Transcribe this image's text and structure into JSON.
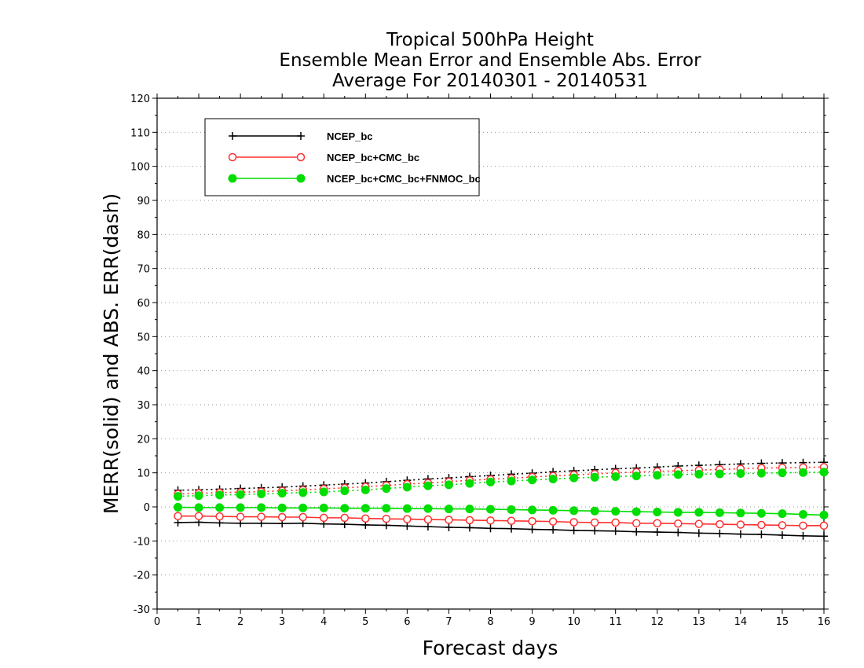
{
  "chart_data": {
    "type": "line",
    "title_lines": [
      "Tropical 500hPa Height",
      "Ensemble Mean Error and Ensemble Abs. Error",
      "Average For 20140301 - 20140531"
    ],
    "xlabel": "Forecast days",
    "ylabel": "MERR(solid) and ABS. ERR(dash)",
    "xlim": [
      0,
      16
    ],
    "ylim": [
      -30,
      120
    ],
    "x_ticks": [
      0,
      1,
      2,
      3,
      4,
      5,
      6,
      7,
      8,
      9,
      10,
      11,
      12,
      13,
      14,
      15,
      16
    ],
    "y_ticks": [
      -30,
      -20,
      -10,
      0,
      10,
      20,
      30,
      40,
      50,
      60,
      70,
      80,
      90,
      100,
      110,
      120
    ],
    "grid": "dotted horizontal",
    "legend_position": "top-left",
    "x": [
      0.5,
      1,
      1.5,
      2,
      2.5,
      3,
      3.5,
      4,
      4.5,
      5,
      5.5,
      6,
      6.5,
      7,
      7.5,
      8,
      8.5,
      9,
      9.5,
      10,
      10.5,
      11,
      11.5,
      12,
      12.5,
      13,
      13.5,
      14,
      14.5,
      15,
      15.5,
      16
    ],
    "series": [
      {
        "name": "NCEP_bc",
        "color": "#000000",
        "marker": "plus",
        "merr": [
          -4.6,
          -4.5,
          -4.7,
          -4.8,
          -4.8,
          -4.9,
          -4.8,
          -5.0,
          -5.1,
          -5.3,
          -5.4,
          -5.6,
          -5.8,
          -6.0,
          -6.1,
          -6.3,
          -6.4,
          -6.6,
          -6.7,
          -6.9,
          -7.0,
          -7.1,
          -7.3,
          -7.4,
          -7.5,
          -7.7,
          -7.8,
          -8.0,
          -8.1,
          -8.3,
          -8.5,
          -8.6
        ],
        "abs_err": [
          4.9,
          5.0,
          5.2,
          5.4,
          5.6,
          5.8,
          6.1,
          6.4,
          6.7,
          7.0,
          7.4,
          7.8,
          8.2,
          8.5,
          8.9,
          9.2,
          9.6,
          9.9,
          10.3,
          10.6,
          10.9,
          11.2,
          11.4,
          11.7,
          12.0,
          12.2,
          12.4,
          12.6,
          12.8,
          12.9,
          13.0,
          13.1
        ]
      },
      {
        "name": "NCEP_bc+CMC_bc",
        "color": "#ff3030",
        "marker": "open-circle",
        "merr": [
          -2.7,
          -2.7,
          -2.8,
          -2.9,
          -2.9,
          -3.0,
          -3.0,
          -3.2,
          -3.2,
          -3.4,
          -3.5,
          -3.6,
          -3.7,
          -3.8,
          -3.9,
          -4.0,
          -4.1,
          -4.2,
          -4.3,
          -4.5,
          -4.6,
          -4.6,
          -4.8,
          -4.8,
          -4.9,
          -5.0,
          -5.1,
          -5.2,
          -5.3,
          -5.4,
          -5.5,
          -5.5
        ],
        "abs_err": [
          3.8,
          4.0,
          4.2,
          4.3,
          4.5,
          4.7,
          5.0,
          5.3,
          5.6,
          5.9,
          6.3,
          6.7,
          7.0,
          7.4,
          7.8,
          8.1,
          8.4,
          8.8,
          9.1,
          9.4,
          9.7,
          10.0,
          10.2,
          10.4,
          10.6,
          10.8,
          11.0,
          11.2,
          11.4,
          11.5,
          11.6,
          11.7
        ]
      },
      {
        "name": "NCEP_bc+CMC_bc+FNMOC_bc",
        "color": "#00dd00",
        "marker": "filled-circle",
        "merr": [
          -0.1,
          -0.2,
          -0.2,
          -0.2,
          -0.2,
          -0.3,
          -0.3,
          -0.3,
          -0.4,
          -0.4,
          -0.4,
          -0.5,
          -0.5,
          -0.6,
          -0.6,
          -0.7,
          -0.8,
          -0.9,
          -1.0,
          -1.1,
          -1.2,
          -1.3,
          -1.4,
          -1.5,
          -1.6,
          -1.6,
          -1.7,
          -1.8,
          -1.9,
          -2.0,
          -2.2,
          -2.4
        ],
        "abs_err": [
          3.1,
          3.3,
          3.5,
          3.6,
          3.8,
          4.0,
          4.2,
          4.4,
          4.7,
          5.0,
          5.4,
          5.8,
          6.2,
          6.5,
          6.9,
          7.3,
          7.6,
          7.9,
          8.2,
          8.5,
          8.7,
          8.9,
          9.1,
          9.3,
          9.5,
          9.6,
          9.7,
          9.8,
          9.9,
          10.0,
          10.1,
          10.2
        ]
      }
    ]
  }
}
